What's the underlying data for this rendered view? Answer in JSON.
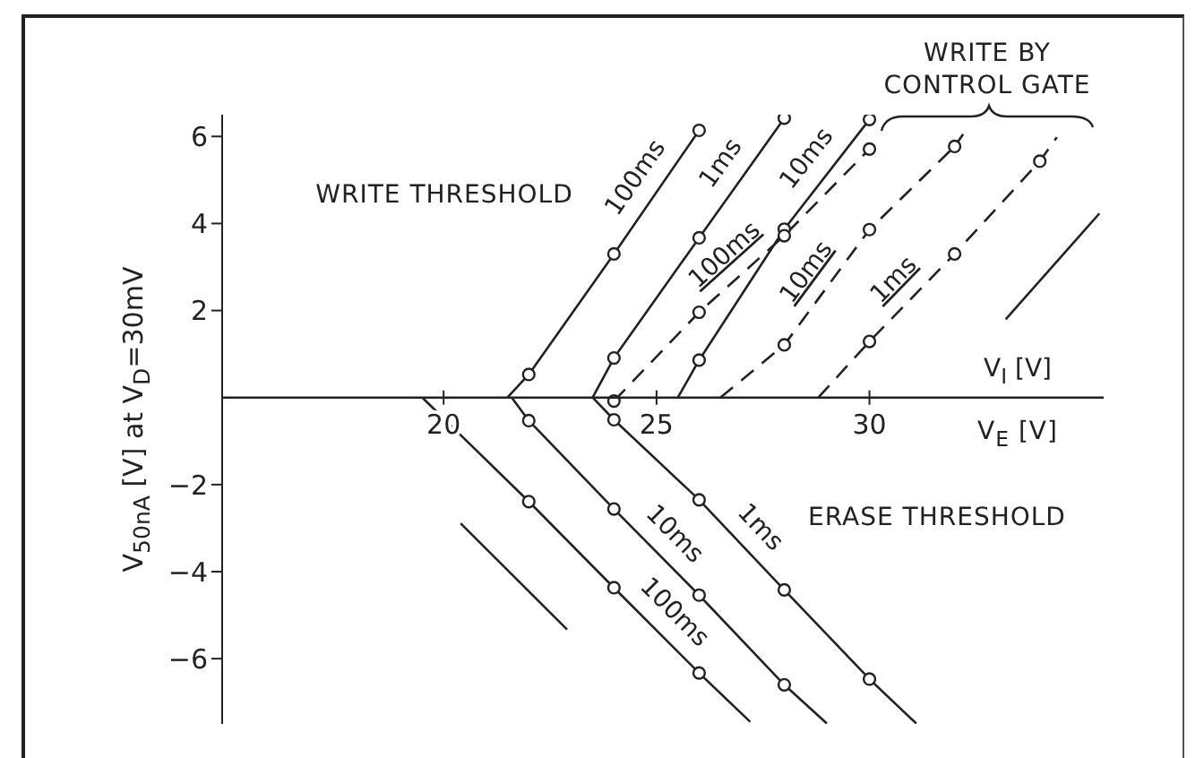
{
  "chart_data": {
    "type": "line",
    "xlabel": "V$_{I}$ [V]",
    "ylabel": "V$_{50nA}$ [V] at V$_{D}$=30mV",
    "xlim": [
      14.8,
      35.5
    ],
    "ylim": [
      -7.5,
      6.5
    ],
    "xticks": [
      20,
      25,
      30
    ],
    "yticks": [
      -6,
      -4,
      -2,
      2,
      4,
      6
    ],
    "marker": "none",
    "line_style": "solid",
    "legend": false,
    "grid": false,
    "annotations": [
      "WRITE THRESHOLD",
      "ERASE THRESHOLD",
      "WRITE BY CONTROL GATE",
      "V$_{E}$ [V]"
    ],
    "series": [
      {
        "name": "100ms",
        "color": "#222222",
        "x": [
          21.5,
          22,
          24,
          26
        ],
        "values": [
          0,
          0.53,
          3.3,
          6.14
        ]
      },
      {
        "name": "1ms",
        "color": "#222222",
        "x": [
          23.5,
          24,
          26,
          28
        ],
        "values": [
          0,
          0.91,
          3.67,
          6.42
        ]
      },
      {
        "name": "10ms",
        "color": "#222222",
        "x": [
          25.5,
          26,
          28,
          30
        ],
        "values": [
          0,
          0.86,
          3.87,
          6.39
        ]
      },
      {
        "name": "100ms",
        "color": "#222222",
        "line_style": "dashed",
        "x": [
          24,
          26,
          28,
          30
        ],
        "values": [
          -0.08,
          1.96,
          3.72,
          5.71
        ]
      },
      {
        "name": "10ms",
        "color": "#222222",
        "line_style": "dashed",
        "x": [
          26.5,
          28,
          30,
          32,
          32.2
        ],
        "values": [
          0,
          1.21,
          3.86,
          5.77,
          6.05
        ]
      },
      {
        "name": "1ms",
        "color": "#222222",
        "line_style": "dashed",
        "x": [
          28.8,
          30,
          32,
          34,
          34.4
        ],
        "values": [
          0,
          1.29,
          3.3,
          5.43,
          5.98
        ]
      },
      {
        "name": "100ms",
        "color": "#222222",
        "x": [
          19.5,
          22,
          24,
          26,
          27.2
        ],
        "values": [
          0,
          -2.39,
          -4.37,
          -6.33,
          -7.45
        ]
      },
      {
        "name": "10ms",
        "color": "#222222",
        "x": [
          21.6,
          22,
          24,
          26,
          28,
          29
        ],
        "values": [
          0,
          -0.53,
          -2.56,
          -4.54,
          -6.6,
          -7.49
        ]
      },
      {
        "name": "1ms",
        "color": "#222222",
        "x": [
          23.5,
          24,
          26,
          28,
          30,
          31.1
        ],
        "values": [
          0,
          -0.51,
          -2.35,
          -4.42,
          -6.47,
          -7.49
        ]
      },
      {
        "color": "#222222",
        "x": [
          20.4,
          22.9
        ],
        "values": [
          -2.89,
          -5.33
        ]
      },
      {
        "color": "#222222",
        "x": [
          33.2,
          35.4
        ],
        "values": [
          1.8,
          4.23
        ]
      },
      {
        "type": "scatter",
        "marker": "circle",
        "color": "#222222",
        "x": [
          22,
          24,
          26,
          24,
          26,
          28,
          26,
          28,
          30,
          24,
          26,
          28,
          30,
          28,
          30,
          32,
          30,
          32,
          34,
          22,
          24,
          26,
          22,
          24,
          26,
          28,
          24,
          26,
          28,
          30
        ],
        "values": [
          0.53,
          3.3,
          6.14,
          0.91,
          3.67,
          6.42,
          0.86,
          3.87,
          6.39,
          -0.08,
          1.96,
          3.72,
          5.71,
          1.21,
          3.86,
          5.77,
          1.29,
          3.3,
          5.43,
          -2.39,
          -4.37,
          -6.33,
          -0.53,
          -2.56,
          -4.54,
          -6.6,
          -0.51,
          -2.35,
          -4.42,
          -6.47
        ]
      }
    ]
  }
}
